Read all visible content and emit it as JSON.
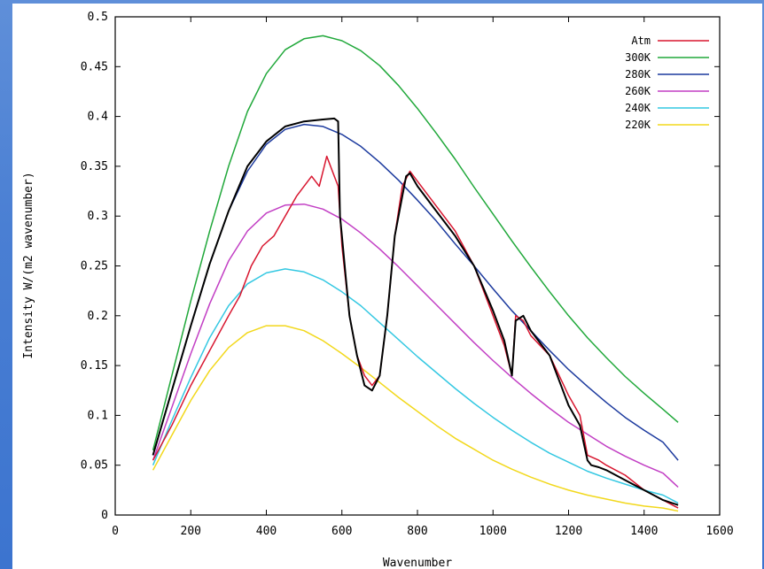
{
  "chart_data": {
    "type": "line",
    "xlabel": "Wavenumber",
    "ylabel": "Intensity W/(m2 wavenumber)",
    "xlim": [
      0,
      1600
    ],
    "ylim": [
      0,
      0.5
    ],
    "xticks": [
      "0",
      "200",
      "400",
      "600",
      "800",
      "1000",
      "1200",
      "1400",
      "1600"
    ],
    "xtick_values": [
      0,
      200,
      400,
      600,
      800,
      1000,
      1200,
      1400,
      1600
    ],
    "yticks": [
      "0",
      "0.05",
      "0.1",
      "0.15",
      "0.2",
      "0.25",
      "0.3",
      "0.35",
      "0.4",
      "0.45",
      "0.5"
    ],
    "ytick_values": [
      0,
      0.05,
      0.1,
      0.15,
      0.2,
      0.25,
      0.3,
      0.35,
      0.4,
      0.45,
      0.5
    ],
    "grid": false,
    "legend_position": "top-right",
    "series": [
      {
        "name": "Atm",
        "color": "#d8162f",
        "x": [
          100,
          150,
          200,
          250,
          300,
          330,
          360,
          390,
          420,
          450,
          480,
          500,
          520,
          540,
          560,
          580,
          590,
          600,
          620,
          640,
          660,
          680,
          700,
          720,
          740,
          760,
          780,
          800,
          850,
          900,
          950,
          1000,
          1030,
          1050,
          1060,
          1080,
          1100,
          1150,
          1200,
          1230,
          1250,
          1280,
          1300,
          1350,
          1400,
          1450,
          1490
        ],
        "y": [
          0.055,
          0.09,
          0.13,
          0.165,
          0.2,
          0.22,
          0.25,
          0.27,
          0.28,
          0.3,
          0.32,
          0.33,
          0.34,
          0.33,
          0.36,
          0.34,
          0.33,
          0.27,
          0.2,
          0.16,
          0.14,
          0.13,
          0.14,
          0.2,
          0.28,
          0.33,
          0.345,
          0.335,
          0.31,
          0.285,
          0.25,
          0.2,
          0.17,
          0.14,
          0.2,
          0.195,
          0.18,
          0.16,
          0.12,
          0.1,
          0.06,
          0.055,
          0.05,
          0.04,
          0.025,
          0.015,
          0.007
        ]
      },
      {
        "name": "300K",
        "color": "#20a83a",
        "x": [
          100,
          150,
          200,
          250,
          300,
          350,
          400,
          450,
          500,
          550,
          600,
          650,
          700,
          750,
          800,
          850,
          900,
          950,
          1000,
          1050,
          1100,
          1150,
          1200,
          1250,
          1300,
          1350,
          1400,
          1450,
          1490
        ],
        "y": [
          0.065,
          0.14,
          0.215,
          0.285,
          0.35,
          0.405,
          0.443,
          0.467,
          0.478,
          0.481,
          0.476,
          0.466,
          0.451,
          0.431,
          0.408,
          0.383,
          0.357,
          0.329,
          0.302,
          0.275,
          0.249,
          0.224,
          0.2,
          0.178,
          0.158,
          0.139,
          0.122,
          0.106,
          0.093
        ]
      },
      {
        "name": "280K",
        "color": "#1c3a9e",
        "x": [
          100,
          150,
          200,
          250,
          300,
          350,
          400,
          450,
          500,
          550,
          600,
          650,
          700,
          750,
          800,
          850,
          900,
          950,
          1000,
          1050,
          1100,
          1150,
          1200,
          1250,
          1300,
          1350,
          1400,
          1450,
          1490
        ],
        "y": [
          0.06,
          0.125,
          0.19,
          0.252,
          0.305,
          0.345,
          0.372,
          0.387,
          0.392,
          0.39,
          0.382,
          0.37,
          0.354,
          0.336,
          0.316,
          0.295,
          0.272,
          0.25,
          0.227,
          0.205,
          0.185,
          0.165,
          0.146,
          0.129,
          0.113,
          0.098,
          0.085,
          0.073,
          0.055
        ]
      },
      {
        "name": "260K",
        "color": "#c23fc4",
        "x": [
          100,
          150,
          200,
          250,
          300,
          350,
          400,
          450,
          500,
          550,
          600,
          650,
          700,
          750,
          800,
          850,
          900,
          950,
          1000,
          1050,
          1100,
          1150,
          1200,
          1250,
          1300,
          1350,
          1400,
          1450,
          1490
        ],
        "y": [
          0.055,
          0.108,
          0.162,
          0.212,
          0.255,
          0.285,
          0.303,
          0.311,
          0.312,
          0.307,
          0.297,
          0.283,
          0.267,
          0.249,
          0.23,
          0.211,
          0.192,
          0.173,
          0.155,
          0.138,
          0.122,
          0.107,
          0.093,
          0.081,
          0.069,
          0.059,
          0.05,
          0.042,
          0.028
        ]
      },
      {
        "name": "240K",
        "color": "#34c8e2",
        "x": [
          100,
          150,
          200,
          250,
          300,
          350,
          400,
          450,
          500,
          550,
          600,
          650,
          700,
          750,
          800,
          850,
          900,
          950,
          1000,
          1050,
          1100,
          1150,
          1200,
          1250,
          1300,
          1350,
          1400,
          1450,
          1490
        ],
        "y": [
          0.05,
          0.095,
          0.138,
          0.178,
          0.21,
          0.232,
          0.243,
          0.247,
          0.244,
          0.236,
          0.224,
          0.21,
          0.193,
          0.176,
          0.159,
          0.143,
          0.127,
          0.112,
          0.098,
          0.085,
          0.073,
          0.062,
          0.053,
          0.044,
          0.037,
          0.031,
          0.025,
          0.02,
          0.012
        ]
      },
      {
        "name": "220K",
        "color": "#f2d81c",
        "x": [
          100,
          150,
          200,
          250,
          300,
          350,
          400,
          450,
          500,
          550,
          600,
          650,
          700,
          750,
          800,
          850,
          900,
          950,
          1000,
          1050,
          1100,
          1150,
          1200,
          1250,
          1300,
          1350,
          1400,
          1450,
          1490
        ],
        "y": [
          0.045,
          0.08,
          0.115,
          0.145,
          0.168,
          0.183,
          0.19,
          0.19,
          0.185,
          0.175,
          0.162,
          0.148,
          0.133,
          0.118,
          0.104,
          0.09,
          0.077,
          0.066,
          0.055,
          0.046,
          0.038,
          0.031,
          0.025,
          0.02,
          0.016,
          0.012,
          0.009,
          0.007,
          0.004
        ]
      },
      {
        "name": "",
        "color": "#000000",
        "x": [
          100,
          150,
          200,
          250,
          300,
          350,
          400,
          450,
          500,
          550,
          580,
          590,
          595,
          600,
          610,
          620,
          640,
          660,
          680,
          700,
          720,
          740,
          760,
          770,
          780,
          800,
          850,
          900,
          950,
          1000,
          1030,
          1050,
          1060,
          1080,
          1100,
          1150,
          1200,
          1230,
          1250,
          1260,
          1280,
          1300,
          1350,
          1400,
          1450,
          1490
        ],
        "y": [
          0.06,
          0.125,
          0.19,
          0.252,
          0.305,
          0.35,
          0.375,
          0.39,
          0.395,
          0.397,
          0.398,
          0.395,
          0.3,
          0.28,
          0.24,
          0.2,
          0.16,
          0.13,
          0.125,
          0.14,
          0.2,
          0.28,
          0.32,
          0.34,
          0.343,
          0.33,
          0.305,
          0.28,
          0.25,
          0.205,
          0.175,
          0.14,
          0.195,
          0.2,
          0.185,
          0.16,
          0.11,
          0.09,
          0.055,
          0.05,
          0.048,
          0.045,
          0.035,
          0.025,
          0.015,
          0.01
        ]
      }
    ]
  }
}
